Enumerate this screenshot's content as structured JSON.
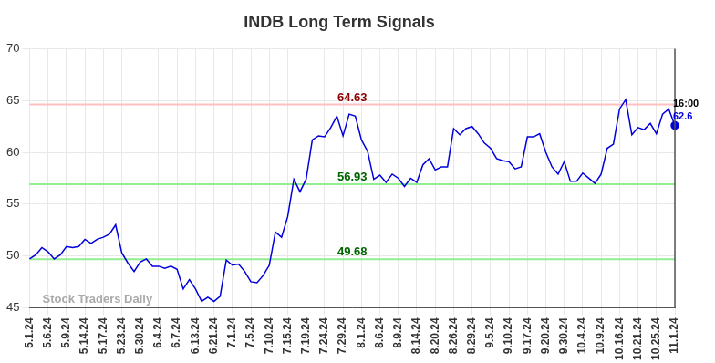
{
  "chart_data": {
    "type": "line",
    "title": "INDB Long Term Signals",
    "categories": [
      "5.1.24",
      null,
      null,
      "5.6.24",
      null,
      null,
      "5.9.24",
      null,
      null,
      "5.14.24",
      null,
      null,
      "5.17.24",
      null,
      null,
      "5.23.24",
      null,
      null,
      "5.30.24",
      null,
      null,
      "6.4.24",
      null,
      null,
      "6.7.24",
      null,
      null,
      "6.13.24",
      null,
      null,
      "6.21.24",
      null,
      null,
      "7.1.24",
      null,
      null,
      "7.5.24",
      null,
      null,
      "7.10.24",
      null,
      null,
      "7.15.24",
      null,
      null,
      "7.19.24",
      null,
      null,
      "7.24.24",
      null,
      null,
      "7.29.24",
      null,
      null,
      "8.1.24",
      null,
      null,
      "8.6.24",
      null,
      null,
      "8.9.24",
      null,
      null,
      "8.14.24",
      null,
      null,
      "8.20.24",
      null,
      null,
      "8.26.24",
      null,
      null,
      "8.29.24",
      null,
      null,
      "9.5.24",
      null,
      null,
      "9.10.24",
      null,
      null,
      "9.17.24",
      null,
      null,
      "9.20.24",
      null,
      null,
      "9.30.24",
      null,
      null,
      "10.4.24",
      null,
      null,
      "10.9.24",
      null,
      null,
      "10.16.24",
      null,
      null,
      "10.21.24",
      null,
      null,
      "10.25.24",
      null,
      null,
      "11.1.24"
    ],
    "values": [
      49.7,
      50.1,
      50.8,
      50.4,
      49.7,
      50.1,
      50.9,
      50.8,
      50.9,
      51.6,
      51.2,
      51.6,
      51.8,
      52.1,
      53.0,
      50.3,
      49.3,
      48.5,
      49.4,
      49.7,
      49.0,
      49.0,
      48.8,
      49.0,
      48.7,
      46.8,
      47.7,
      46.8,
      45.6,
      46.0,
      45.6,
      46.1,
      49.6,
      49.1,
      49.2,
      48.5,
      47.5,
      47.4,
      48.1,
      49.1,
      52.3,
      51.8,
      53.8,
      57.4,
      56.2,
      57.4,
      61.2,
      61.6,
      61.5,
      62.4,
      63.5,
      61.6,
      63.7,
      63.5,
      61.2,
      60.1,
      57.4,
      57.8,
      57.1,
      57.9,
      57.5,
      56.7,
      57.5,
      57.1,
      58.8,
      59.4,
      58.3,
      58.6,
      58.6,
      62.3,
      61.7,
      62.3,
      62.5,
      61.8,
      60.9,
      60.4,
      59.4,
      59.2,
      59.1,
      58.4,
      58.6,
      61.5,
      61.5,
      61.8,
      60.0,
      58.6,
      57.9,
      59.1,
      57.2,
      57.2,
      58.0,
      57.5,
      57.0,
      57.9,
      60.4,
      60.8,
      64.2,
      65.1,
      61.7,
      62.4,
      62.2,
      62.8,
      61.8,
      63.7,
      64.2,
      62.6
    ],
    "color": "#0000dd",
    "ylim": [
      45,
      70
    ],
    "yticks": [
      45,
      50,
      55,
      60,
      65,
      70
    ],
    "grid": true,
    "reference_lines": [
      {
        "value": 64.63,
        "color": "#ffbfbf",
        "label_color": "#8b0000"
      },
      {
        "value": 56.93,
        "color": "#90ee90",
        "label_color": "#006400"
      },
      {
        "value": 49.68,
        "color": "#90ee90",
        "label_color": "#006400"
      }
    ],
    "annotations": [
      "Stock Traders Daily",
      "16:00"
    ]
  }
}
